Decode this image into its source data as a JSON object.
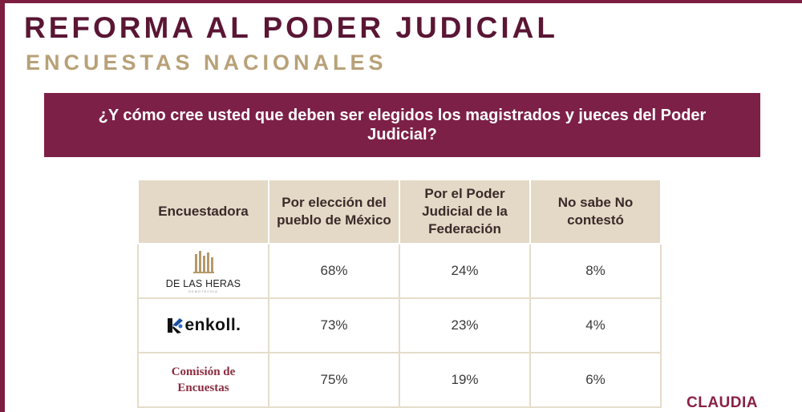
{
  "header": {
    "title": "REFORMA AL PODER JUDICIAL",
    "subtitle": "ENCUESTAS NACIONALES"
  },
  "question": "¿Y cómo cree usted que deben ser elegidos los magistrados y jueces del Poder Judicial?",
  "table": {
    "headers": [
      "Encuestadora",
      "Por elección del pueblo de México",
      "Por el Poder Judicial de la Federación",
      "No sabe No contestó"
    ],
    "rows": [
      {
        "pollster": "DE LAS HERAS",
        "pollster_sub": "DEMOTECNIA",
        "eleccion_pueblo": "68%",
        "poder_judicial": "24%",
        "no_sabe": "8%"
      },
      {
        "pollster": "enkoll.",
        "eleccion_pueblo": "73%",
        "poder_judicial": "23%",
        "no_sabe": "4%"
      },
      {
        "pollster": "Comisión de Encuestas",
        "eleccion_pueblo": "75%",
        "poder_judicial": "19%",
        "no_sabe": "6%"
      }
    ]
  },
  "brand": "CLAUDIA",
  "colors": {
    "accent": "#7d2047",
    "gold": "#b8a178",
    "header_bg": "#e3d9c6"
  }
}
